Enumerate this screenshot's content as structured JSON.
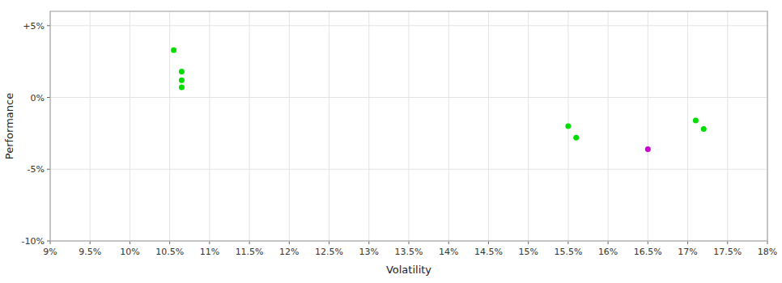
{
  "chart_data": {
    "type": "scatter",
    "xlabel": "Volatility",
    "ylabel": "Performance",
    "xlim": [
      0.09,
      0.18
    ],
    "ylim": [
      -0.1,
      0.06
    ],
    "xticks": [
      {
        "value": 0.09,
        "label": "9%"
      },
      {
        "value": 0.095,
        "label": "9.5%"
      },
      {
        "value": 0.1,
        "label": "10%"
      },
      {
        "value": 0.105,
        "label": "10.5%"
      },
      {
        "value": 0.11,
        "label": "11%"
      },
      {
        "value": 0.115,
        "label": "11.5%"
      },
      {
        "value": 0.12,
        "label": "12%"
      },
      {
        "value": 0.125,
        "label": "12.5%"
      },
      {
        "value": 0.13,
        "label": "13%"
      },
      {
        "value": 0.135,
        "label": "13.5%"
      },
      {
        "value": 0.14,
        "label": "14%"
      },
      {
        "value": 0.145,
        "label": "14.5%"
      },
      {
        "value": 0.15,
        "label": "15%"
      },
      {
        "value": 0.155,
        "label": "15.5%"
      },
      {
        "value": 0.16,
        "label": "16%"
      },
      {
        "value": 0.165,
        "label": "16.5%"
      },
      {
        "value": 0.17,
        "label": "17%"
      },
      {
        "value": 0.175,
        "label": "17.5%"
      },
      {
        "value": 0.18,
        "label": "18%"
      }
    ],
    "yticks": [
      {
        "value": -0.1,
        "label": "-10%"
      },
      {
        "value": -0.05,
        "label": "-5%"
      },
      {
        "value": 0.0,
        "label": "0%"
      },
      {
        "value": 0.05,
        "label": "+5%"
      }
    ],
    "grid": true,
    "series": [
      {
        "color": "#00dd00",
        "x": [
          0.1055,
          0.1065,
          0.1065,
          0.1065,
          0.155,
          0.156,
          0.171,
          0.172
        ],
        "values": [
          0.033,
          0.018,
          0.012,
          0.007,
          -0.02,
          -0.028,
          -0.016,
          -0.022
        ]
      },
      {
        "color": "#cc00cc",
        "x": [
          0.165
        ],
        "values": [
          -0.036
        ]
      }
    ]
  }
}
